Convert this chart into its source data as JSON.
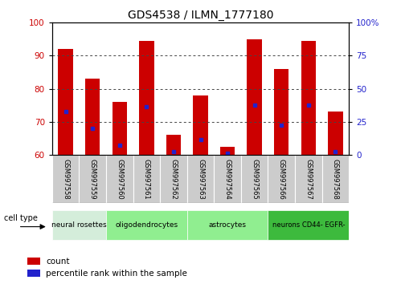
{
  "title": "GDS4538 / ILMN_1777180",
  "samples": [
    "GSM997558",
    "GSM997559",
    "GSM997560",
    "GSM997561",
    "GSM997562",
    "GSM997563",
    "GSM997564",
    "GSM997565",
    "GSM997566",
    "GSM997567",
    "GSM997568"
  ],
  "bar_tops": [
    92,
    83,
    76,
    94.5,
    66,
    78,
    62.5,
    95,
    86,
    94.5,
    73
  ],
  "bar_bottoms": [
    60,
    60,
    60,
    60,
    60,
    60,
    60,
    60,
    60,
    60,
    60
  ],
  "blue_dots_y": [
    73,
    68,
    63,
    74.5,
    61,
    64.5,
    60.5,
    75,
    69,
    75,
    61
  ],
  "ylim_left": [
    60,
    100
  ],
  "ylim_right": [
    0,
    100
  ],
  "yticks_left": [
    60,
    70,
    80,
    90,
    100
  ],
  "yticks_right": [
    0,
    25,
    50,
    75,
    100
  ],
  "cell_types": [
    {
      "label": "neural rosettes",
      "start": 0,
      "end": 1,
      "color": "#d4edda"
    },
    {
      "label": "oligodendrocytes",
      "start": 2,
      "end": 4,
      "color": "#90ee90"
    },
    {
      "label": "astrocytes",
      "start": 5,
      "end": 7,
      "color": "#90ee90"
    },
    {
      "label": "neurons CD44- EGFR-",
      "start": 8,
      "end": 10,
      "color": "#3dba3d"
    }
  ],
  "bar_color": "#cc0000",
  "dot_color": "#2222cc",
  "title_color": "#000000",
  "left_axis_color": "#cc0000",
  "right_axis_color": "#2222cc",
  "grid_color": "#444444",
  "bg_plot": "#ffffff",
  "label_bg": "#cccccc",
  "legend_count_label": "count",
  "legend_pct_label": "percentile rank within the sample",
  "cell_type_label": "cell type"
}
